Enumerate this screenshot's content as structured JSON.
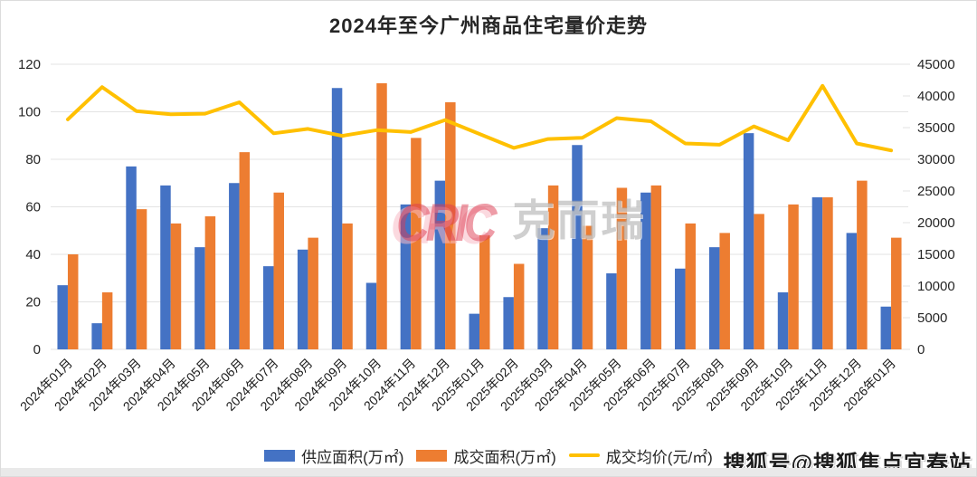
{
  "page": {
    "watermark_cric_en": "CRIC",
    "watermark_cric_cn": "克而瑞",
    "watermark_sohu": "搜狐号@搜狐焦点宜春站"
  },
  "colors": {
    "supply_bar": "#4472C4",
    "deal_bar": "#ED7D31",
    "price_line": "#FFC000",
    "gridline": "#e3e3e3",
    "axis_text": "#262626",
    "x_label_text": "#1a1a1a"
  },
  "chart_data": {
    "type": "bar",
    "subtype": "grouped-bars-with-line",
    "title": "2024年至今广州商品住宅量价走势",
    "categories": [
      "2024年01月",
      "2024年02月",
      "2024年03月",
      "2024年04月",
      "2024年05月",
      "2024年06月",
      "2024年07月",
      "2024年08月",
      "2024年09月",
      "2024年10月",
      "2024年11月",
      "2024年12月",
      "2025年01月",
      "2025年02月",
      "2025年03月",
      "2025年04月",
      "2025年05月",
      "2025年06月",
      "2025年07月",
      "2025年08月",
      "2025年09月",
      "2025年10月",
      "2025年11月",
      "2025年12月",
      "2026年01月"
    ],
    "series": [
      {
        "name": "供应面积(万㎡)",
        "type": "bar",
        "axis": "left",
        "color": "#4472C4",
        "values": [
          27,
          11,
          77,
          69,
          43,
          70,
          35,
          42,
          110,
          28,
          61,
          71,
          15,
          22,
          51,
          86,
          32,
          66,
          34,
          43,
          91,
          24,
          64,
          49,
          18
        ]
      },
      {
        "name": "成交面积(万㎡)",
        "type": "bar",
        "axis": "left",
        "color": "#ED7D31",
        "values": [
          40,
          24,
          59,
          53,
          56,
          83,
          66,
          47,
          53,
          112,
          89,
          104,
          48,
          36,
          69,
          52,
          68,
          69,
          53,
          49,
          57,
          61,
          64,
          71,
          47
        ]
      },
      {
        "name": "成交均价(元/㎡)",
        "type": "line",
        "axis": "right",
        "color": "#FFC000",
        "values": [
          36300,
          41400,
          37600,
          37100,
          37200,
          39000,
          34100,
          34800,
          33700,
          34600,
          34300,
          36200,
          34000,
          31800,
          33200,
          33400,
          36500,
          36000,
          32500,
          32300,
          35200,
          33000,
          41600,
          32500,
          31400
        ]
      }
    ],
    "left_axis": {
      "label": "",
      "min": 0,
      "max": 120,
      "ticks": [
        0,
        20,
        40,
        60,
        80,
        100,
        120
      ]
    },
    "right_axis": {
      "label": "",
      "min": 0,
      "max": 45000,
      "ticks": [
        0,
        5000,
        10000,
        15000,
        20000,
        25000,
        30000,
        35000,
        40000,
        45000
      ]
    },
    "grid": true,
    "legend_position": "bottom"
  }
}
